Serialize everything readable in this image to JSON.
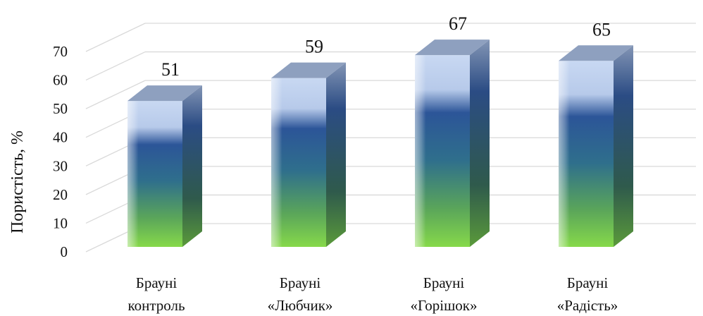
{
  "chart_data": {
    "type": "bar",
    "categories": [
      [
        "Брауні",
        "контроль"
      ],
      [
        "Брауні",
        "«Любчик»"
      ],
      [
        "Брауні",
        "«Горішок»"
      ],
      [
        "Брауні",
        "«Радість»"
      ]
    ],
    "values": [
      51,
      59,
      67,
      65
    ],
    "ylabel": "Пористість, %",
    "xlabel": "",
    "title": "",
    "ylim": [
      0,
      70
    ],
    "yticks": [
      0,
      10,
      20,
      30,
      40,
      50,
      60,
      70
    ],
    "grid": true,
    "legend": "none",
    "style": "3d-cylinder-like columns",
    "colors": {
      "top": "#8ea0bf",
      "side": "#2f4f86",
      "face_light": "#c4d4f0",
      "face_mid": "#2a5296",
      "face_bottom": "#7fd14a",
      "grid": "#d9d9d9"
    }
  }
}
